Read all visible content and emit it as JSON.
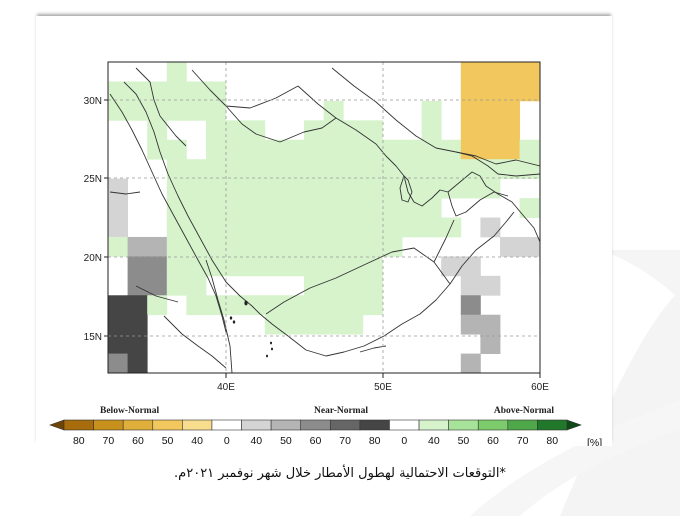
{
  "map": {
    "lat_ticks": [
      "30N",
      "25N",
      "20N",
      "15N"
    ],
    "lon_ticks": [
      "40E",
      "50E",
      "60E"
    ]
  },
  "legend": {
    "below_label": "Below-Normal",
    "near_label": "Near-Normal",
    "above_label": "Above-Normal",
    "unit": "[%]",
    "bins": [
      {
        "label": "80",
        "color": "#a86c0c"
      },
      {
        "label": "70",
        "color": "#c8901c"
      },
      {
        "label": "60",
        "color": "#e0ae3a"
      },
      {
        "label": "50",
        "color": "#f2c75e"
      },
      {
        "label": "40",
        "color": "#f8dd8e"
      },
      {
        "label": "0",
        "color": "#ffffff"
      },
      {
        "label": "40",
        "color": "#d4d4d4"
      },
      {
        "label": "50",
        "color": "#b4b4b4"
      },
      {
        "label": "60",
        "color": "#8c8c8c"
      },
      {
        "label": "70",
        "color": "#666666"
      },
      {
        "label": "80",
        "color": "#454545"
      },
      {
        "label": "0",
        "color": "#ffffff"
      },
      {
        "label": "40",
        "color": "#d6f3cc"
      },
      {
        "label": "50",
        "color": "#a8e39a"
      },
      {
        "label": "60",
        "color": "#7ccc6c"
      },
      {
        "label": "70",
        "color": "#4ea84a"
      },
      {
        "label": "80",
        "color": "#21782a"
      }
    ]
  },
  "caption": "*التوقعات الاحتمالية لهطول الأمطار خلال شهر نوفمبر ٢٠٢١م."
}
